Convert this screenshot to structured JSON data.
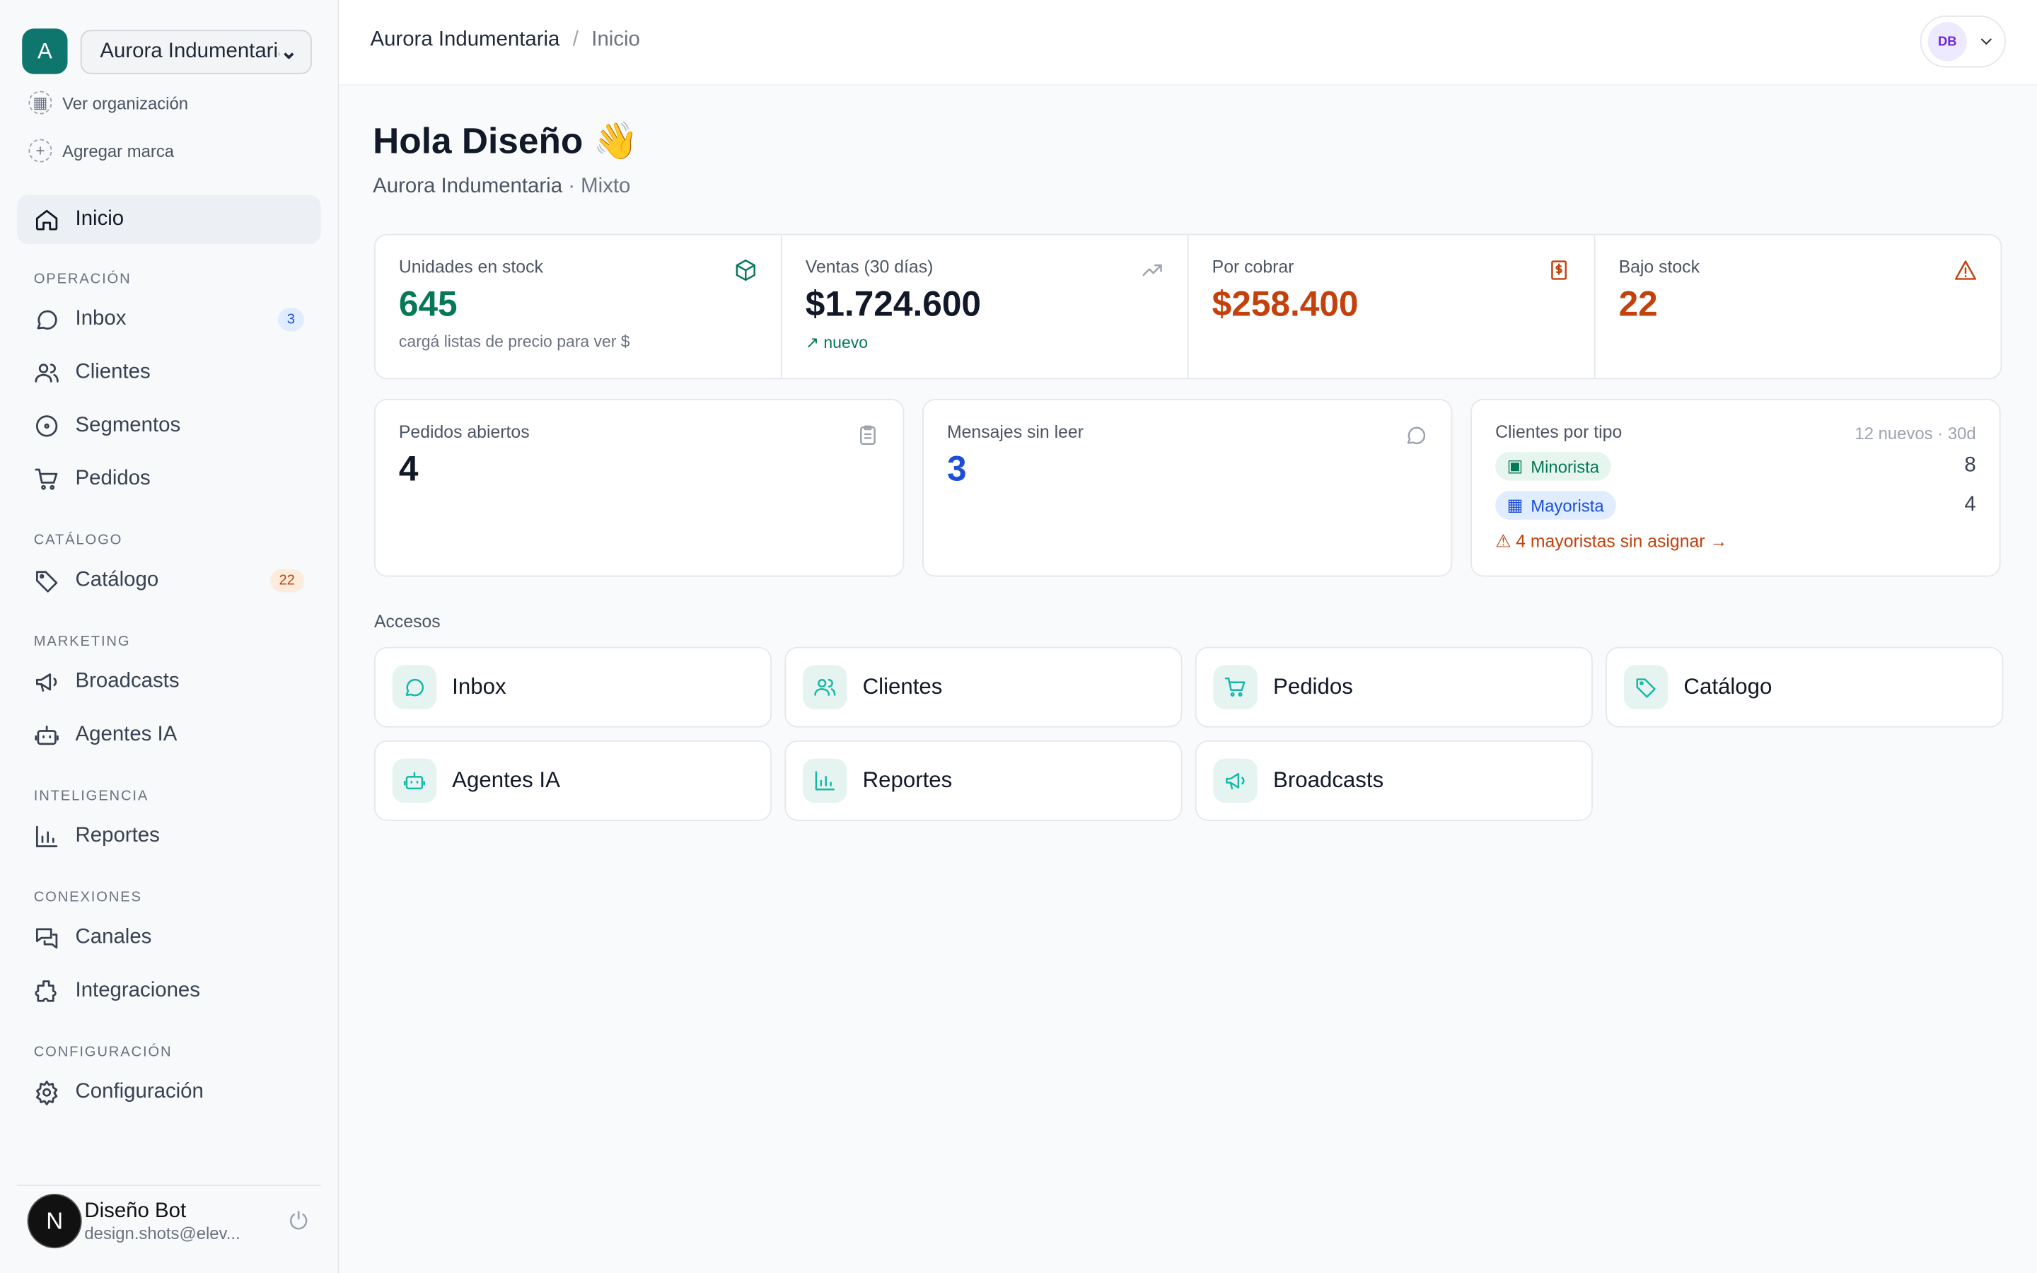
{
  "sidebar": {
    "org_initial": "A",
    "org_name": "Aurora Indumentaria",
    "links": [
      "Ver organización",
      "Agregar marca"
    ],
    "home": "Inicio",
    "sections": [
      {
        "title": "OPERACIÓN",
        "items": [
          {
            "label": "Inbox",
            "badge": "3"
          },
          {
            "label": "Clientes"
          },
          {
            "label": "Segmentos"
          },
          {
            "label": "Pedidos"
          }
        ]
      },
      {
        "title": "CATÁLOGO",
        "items": [
          {
            "label": "Catálogo",
            "badge": "22"
          }
        ]
      },
      {
        "title": "MARKETING",
        "items": [
          {
            "label": "Broadcasts"
          },
          {
            "label": "Agentes IA"
          }
        ]
      },
      {
        "title": "INTELIGENCIA",
        "items": [
          {
            "label": "Reportes"
          }
        ]
      },
      {
        "title": "CONEXIONES",
        "items": [
          {
            "label": "Canales"
          },
          {
            "label": "Integraciones"
          }
        ]
      },
      {
        "title": "CONFIGURACIÓN",
        "items": [
          {
            "label": "Configuración"
          }
        ]
      }
    ],
    "user": {
      "initial": "N",
      "name": "Diseño Bot",
      "email": "design.shots@elev..."
    }
  },
  "header": {
    "breadcrumb": [
      "Aurora Indumentaria",
      "Inicio"
    ],
    "separator": "/",
    "avatar": "DB"
  },
  "greeting": {
    "title": "Hola Diseño 👋",
    "brand": "Aurora Indumentaria",
    "mode": "· Mixto"
  },
  "stats": [
    {
      "label": "Unidades en stock",
      "value": "645",
      "note": "cargá listas de precio para ver $"
    },
    {
      "label": "Ventas (30 días)",
      "value": "$1.724.600",
      "note": "nuevo"
    },
    {
      "label": "Por cobrar",
      "value": "$258.400"
    },
    {
      "label": "Bajo stock",
      "value": "22"
    }
  ],
  "cards": [
    {
      "label": "Pedidos abiertos",
      "value": "4"
    },
    {
      "label": "Mensajes sin leer",
      "value": "3"
    }
  ],
  "clients_by_type": {
    "title": "Clientes por tipo",
    "meta": "12 nuevos · 30d",
    "rows": [
      {
        "label": "Minorista",
        "count": "8"
      },
      {
        "label": "Mayorista",
        "count": "4"
      }
    ],
    "warning": "⚠ 4 mayoristas sin asignar →"
  },
  "accesos": {
    "title": "Accesos",
    "items": [
      "Inbox",
      "Clientes",
      "Pedidos",
      "Catálogo",
      "Agentes IA",
      "Reportes",
      "Broadcasts"
    ]
  }
}
